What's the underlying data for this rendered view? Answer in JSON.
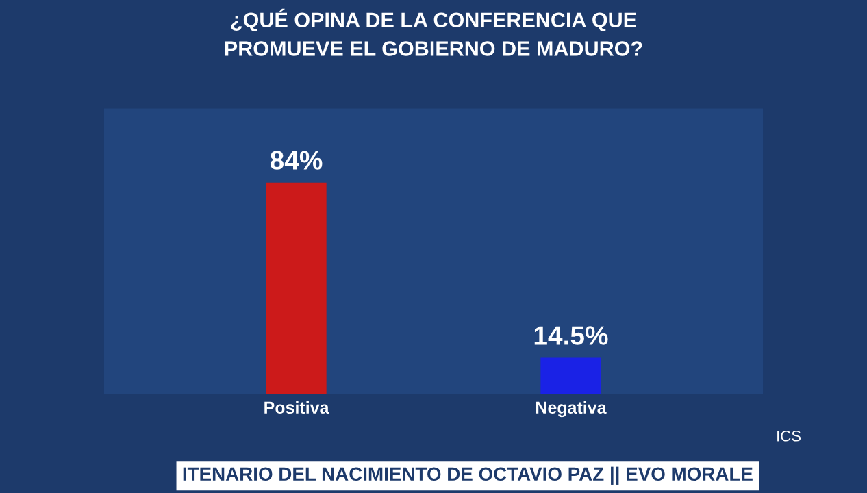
{
  "chart_data": {
    "type": "bar",
    "title": "¿QUÉ OPINA DE LA CONFERENCIA QUE\nPROMUEVE EL GOBIERNO DE MADURO?",
    "categories": [
      "Positiva",
      "Negativa"
    ],
    "values": [
      84,
      14.5
    ],
    "colors": [
      "#cc1a1a",
      "#1a22e6"
    ],
    "value_labels": [
      "84%",
      "14.5%"
    ],
    "annotations": [
      "ICS",
      "ITENARIO DEL NACIMIENTO DE OCTAVIO PAZ || EVO MORALE"
    ]
  }
}
